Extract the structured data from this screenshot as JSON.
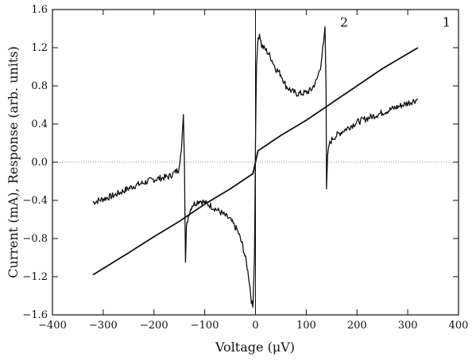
{
  "chart_data": {
    "type": "line",
    "title": "",
    "xlabel": "Voltage (μV)",
    "ylabel": "Current (mA), Response (arb. units)",
    "xlim": [
      -400,
      400
    ],
    "ylim": [
      -1.6,
      1.6
    ],
    "x_ticks": [
      -400,
      -300,
      -200,
      -100,
      0,
      100,
      200,
      300,
      400
    ],
    "y_ticks": [
      -1.6,
      -1.2,
      -0.8,
      -0.4,
      0.0,
      0.4,
      0.8,
      1.2,
      1.6
    ],
    "x_tick_labels": [
      "−400",
      "−300",
      "−200",
      "−100",
      "0",
      "100",
      "200",
      "300",
      "400"
    ],
    "y_tick_labels": [
      "−1.6",
      "−1.2",
      "−0.8",
      "−0.4",
      "0.0",
      "0.4",
      "0.8",
      "1.2",
      "1.6"
    ],
    "grid": false,
    "series": [
      {
        "name": "1",
        "style": "smooth",
        "x": [
          -320,
          -250,
          -200,
          -150,
          -100,
          -50,
          -5,
          5,
          50,
          100,
          150,
          200,
          250,
          320
        ],
        "y": [
          -1.18,
          -0.95,
          -0.78,
          -0.62,
          -0.44,
          -0.28,
          -0.12,
          0.12,
          0.28,
          0.44,
          0.62,
          0.8,
          0.98,
          1.2
        ]
      },
      {
        "name": "2",
        "style": "noisy",
        "x": [
          -320,
          -280,
          -240,
          -200,
          -170,
          -152,
          -146,
          -142,
          -140,
          -138,
          -136,
          -132,
          -125,
          -110,
          -90,
          -70,
          -50,
          -35,
          -25,
          -18,
          -12,
          -8,
          -5,
          -2,
          0,
          2,
          5,
          8,
          12,
          20,
          30,
          40,
          50,
          60,
          70,
          80,
          90,
          100,
          110,
          120,
          128,
          134,
          137,
          139,
          140,
          141,
          142,
          145,
          152,
          170,
          200,
          240,
          280,
          320
        ],
        "y": [
          -0.42,
          -0.35,
          -0.25,
          -0.18,
          -0.15,
          -0.08,
          0.12,
          0.5,
          0.0,
          -1.05,
          -0.7,
          -0.55,
          -0.45,
          -0.4,
          -0.45,
          -0.52,
          -0.6,
          -0.72,
          -0.88,
          -1.05,
          -1.25,
          -1.45,
          -1.52,
          -1.0,
          0.2,
          1.0,
          1.3,
          1.35,
          1.22,
          1.18,
          1.1,
          0.98,
          0.92,
          0.8,
          0.75,
          0.72,
          0.72,
          0.73,
          0.76,
          0.85,
          1.0,
          1.25,
          1.42,
          0.8,
          -0.28,
          -0.1,
          0.05,
          0.18,
          0.25,
          0.32,
          0.42,
          0.5,
          0.58,
          0.66
        ]
      }
    ]
  }
}
